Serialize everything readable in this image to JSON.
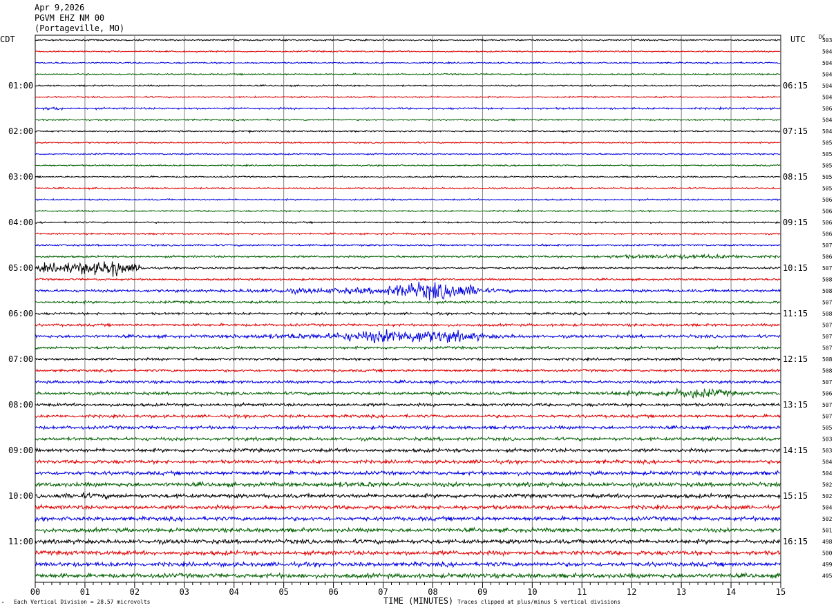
{
  "header": {
    "date": "Apr 9,2026",
    "station": "PGVM EHZ NM 00",
    "location": "(Portageville, MO)"
  },
  "left_zone": "CDT",
  "right_zone": "UTC",
  "dc_label": "DC",
  "footer": {
    "scale_note": "Each Vertical Division =   28.57 microvolts",
    "xaxis_title": "TIME (MINUTES)",
    "clip_note": "Traces clipped at plus/minus 5 vertical divisions"
  },
  "colors": {
    "trace_cycle": [
      "#000000",
      "#e00000",
      "#0000e0",
      "#006000"
    ],
    "grid": "#808080"
  },
  "chart_data": {
    "type": "line",
    "title": "PGVM EHZ NM 00 (Portageville, MO)",
    "xlabel": "TIME (MINUTES)",
    "xlim": [
      0,
      15
    ],
    "x_ticks": [
      "00",
      "01",
      "02",
      "03",
      "04",
      "05",
      "06",
      "07",
      "08",
      "09",
      "10",
      "11",
      "12",
      "13",
      "14",
      "15"
    ],
    "left_time_labels": [
      {
        "row": 4,
        "text": "01:00"
      },
      {
        "row": 8,
        "text": "02:00"
      },
      {
        "row": 12,
        "text": "03:00"
      },
      {
        "row": 16,
        "text": "04:00"
      },
      {
        "row": 20,
        "text": "05:00"
      },
      {
        "row": 24,
        "text": "06:00"
      },
      {
        "row": 28,
        "text": "07:00"
      },
      {
        "row": 32,
        "text": "08:00"
      },
      {
        "row": 36,
        "text": "09:00"
      },
      {
        "row": 40,
        "text": "10:00"
      },
      {
        "row": 44,
        "text": "11:00"
      }
    ],
    "right_time_labels": [
      {
        "row": 4,
        "text": "06:15"
      },
      {
        "row": 8,
        "text": "07:15"
      },
      {
        "row": 12,
        "text": "08:15"
      },
      {
        "row": 16,
        "text": "09:15"
      },
      {
        "row": 20,
        "text": "10:15"
      },
      {
        "row": 24,
        "text": "11:15"
      },
      {
        "row": 28,
        "text": "12:15"
      },
      {
        "row": 32,
        "text": "13:15"
      },
      {
        "row": 36,
        "text": "14:15"
      },
      {
        "row": 40,
        "text": "15:15"
      },
      {
        "row": 44,
        "text": "16:15"
      }
    ],
    "dc_offsets": [
      "503",
      "504",
      "504",
      "504",
      "504",
      "504",
      "506",
      "504",
      "504",
      "505",
      "505",
      "505",
      "505",
      "505",
      "506",
      "506",
      "506",
      "506",
      "507",
      "506",
      "507",
      "508",
      "508",
      "507",
      "508",
      "507",
      "507",
      "507",
      "508",
      "508",
      "507",
      "506",
      "507",
      "507",
      "505",
      "503",
      "503",
      "504",
      "504",
      "502",
      "502",
      "504",
      "502",
      "501",
      "498",
      "500",
      "499",
      "495"
    ],
    "rows": [
      {
        "amp": 1.2
      },
      {
        "amp": 1.2
      },
      {
        "amp": 1.2
      },
      {
        "amp": 1.2
      },
      {
        "amp": 1.2
      },
      {
        "amp": 1.2
      },
      {
        "amp": 1.5,
        "events": [
          [
            0.2,
            0.6,
            3
          ]
        ]
      },
      {
        "amp": 1.2
      },
      {
        "amp": 1.2,
        "events": [
          [
            4.3,
            4.32,
            8
          ]
        ]
      },
      {
        "amp": 1.2
      },
      {
        "amp": 1.2
      },
      {
        "amp": 1.2
      },
      {
        "amp": 1.2
      },
      {
        "amp": 1.2
      },
      {
        "amp": 1.2
      },
      {
        "amp": 1.2
      },
      {
        "amp": 1.3
      },
      {
        "amp": 1.3
      },
      {
        "amp": 1.4,
        "events": [
          [
            10.1,
            10.3,
            2.5
          ]
        ]
      },
      {
        "amp": 1.6,
        "events": [
          [
            11.0,
            15.0,
            3.5
          ]
        ]
      },
      {
        "amp": 1.6,
        "events": [
          [
            0.0,
            2.2,
            10
          ],
          [
            1.3,
            1.8,
            14
          ]
        ]
      },
      {
        "amp": 1.6
      },
      {
        "amp": 2.2,
        "events": [
          [
            4.0,
            9.8,
            5
          ],
          [
            7.0,
            9.0,
            14
          ]
        ]
      },
      {
        "amp": 2.0
      },
      {
        "amp": 1.8
      },
      {
        "amp": 2.0
      },
      {
        "amp": 2.4,
        "events": [
          [
            3.7,
            10.0,
            5
          ],
          [
            6.0,
            9.0,
            11
          ]
        ]
      },
      {
        "amp": 2.0
      },
      {
        "amp": 2.0
      },
      {
        "amp": 2.0
      },
      {
        "amp": 2.2
      },
      {
        "amp": 2.4,
        "events": [
          [
            10.5,
            15.0,
            4
          ],
          [
            12.5,
            14.0,
            8
          ]
        ]
      },
      {
        "amp": 2.4
      },
      {
        "amp": 2.3
      },
      {
        "amp": 2.6
      },
      {
        "amp": 2.6
      },
      {
        "amp": 2.8
      },
      {
        "amp": 2.8
      },
      {
        "amp": 3.0
      },
      {
        "amp": 3.4,
        "events": [
          [
            5.0,
            8.0,
            4.5
          ]
        ]
      },
      {
        "amp": 3.2,
        "events": [
          [
            0.0,
            2.0,
            4.5
          ]
        ]
      },
      {
        "amp": 3.2
      },
      {
        "amp": 3.2
      },
      {
        "amp": 3.2
      },
      {
        "amp": 3.4
      },
      {
        "amp": 3.4
      },
      {
        "amp": 3.4
      },
      {
        "amp": 3.6
      }
    ]
  }
}
